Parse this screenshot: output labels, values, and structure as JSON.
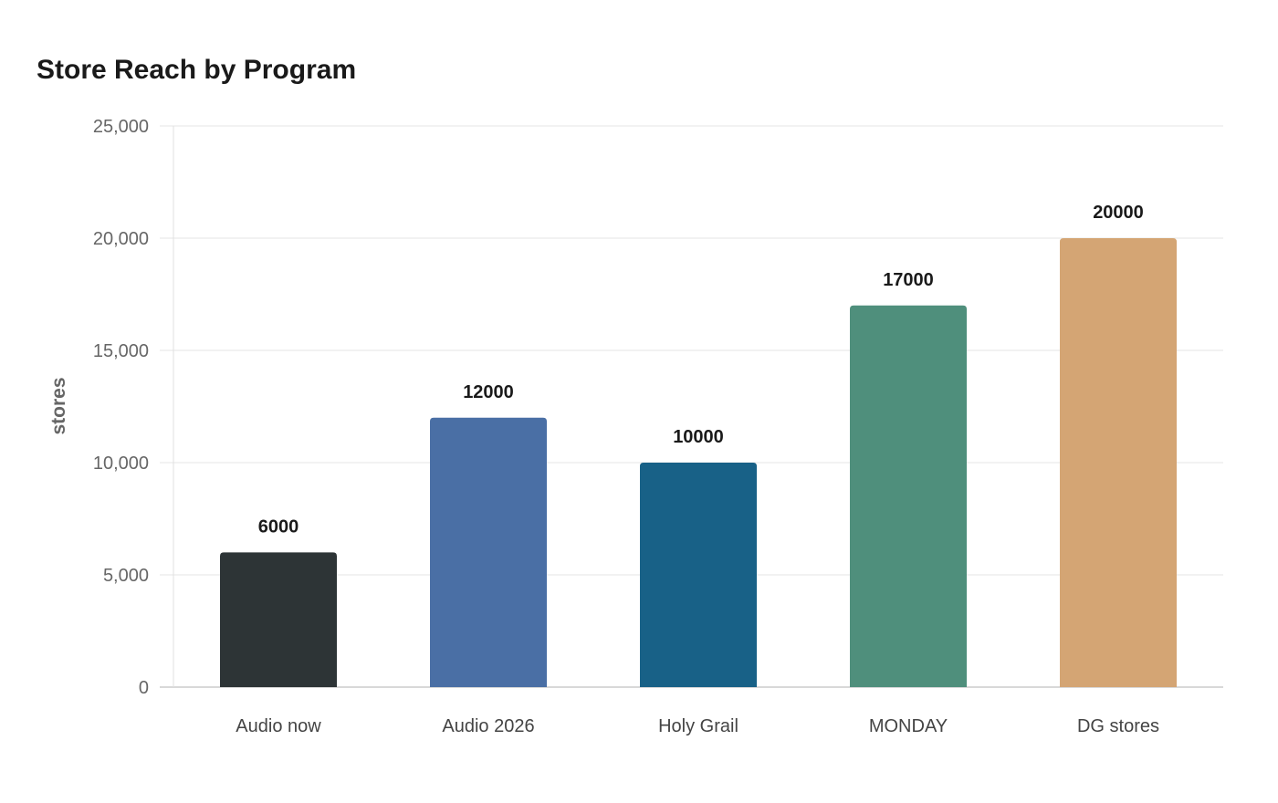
{
  "chart_data": {
    "type": "bar",
    "title": "Store Reach by Program",
    "xlabel": "",
    "ylabel": "stores",
    "categories": [
      "Audio now",
      "Audio 2026",
      "Holy Grail",
      "MONDAY",
      "DG stores"
    ],
    "values": [
      6000,
      12000,
      10000,
      17000,
      20000
    ],
    "data_labels": [
      "6000",
      "12000",
      "10000",
      "17000",
      "20000"
    ],
    "colors": [
      "#2d3436",
      "#4a6fa5",
      "#186187",
      "#4f8f7c",
      "#d4a574"
    ],
    "ylim": [
      0,
      25000
    ],
    "yticks": [
      0,
      5000,
      10000,
      15000,
      20000,
      25000
    ],
    "ytick_labels": [
      "0",
      "5,000",
      "10,000",
      "15,000",
      "20,000",
      "25,000"
    ],
    "grid": "horizontal",
    "legend": "none"
  }
}
